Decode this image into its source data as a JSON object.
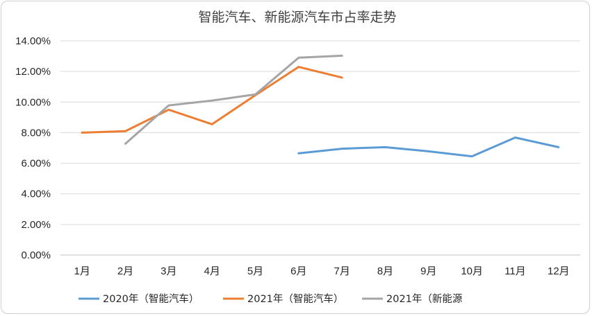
{
  "chart_data": {
    "type": "line",
    "title": "智能汽车、新能源汽车市占率走势",
    "xlabel": "",
    "ylabel": "",
    "categories": [
      "1月",
      "2月",
      "3月",
      "4月",
      "5月",
      "6月",
      "7月",
      "8月",
      "9月",
      "10月",
      "11月",
      "12月"
    ],
    "ylim": [
      0,
      14
    ],
    "yticks": [
      "0.00%",
      "2.00%",
      "4.00%",
      "6.00%",
      "8.00%",
      "10.00%",
      "12.00%",
      "14.00%"
    ],
    "grid": true,
    "legend_position": "bottom",
    "series": [
      {
        "name": "2020年（智能汽车）",
        "color": "#5b9bd5",
        "values": [
          null,
          null,
          null,
          null,
          null,
          6.65,
          6.95,
          7.05,
          6.78,
          6.45,
          7.68,
          7.05
        ]
      },
      {
        "name": "2021年（智能汽车）",
        "color": "#ed7d31",
        "values": [
          8.0,
          8.1,
          9.5,
          8.55,
          10.45,
          12.3,
          11.6,
          null,
          null,
          null,
          null,
          null
        ]
      },
      {
        "name": "2021年（新能源",
        "color": "#a5a5a5",
        "values": [
          null,
          7.28,
          9.78,
          10.1,
          10.5,
          12.9,
          13.03,
          null,
          null,
          null,
          null,
          null
        ]
      }
    ]
  }
}
